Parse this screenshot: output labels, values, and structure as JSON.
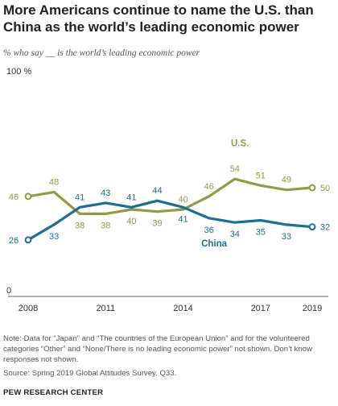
{
  "title": "More Americans continue to name the U.S. than China as the world’s leading economic power",
  "subtitle": "% who say __ is the world’s leading economic power",
  "note": "Note: Data for “Japan” and “The countries of the European Union” and for the volunteered categories “Other” and “None/There is no leading economic power” not shown. Don’t know responses not shown.",
  "source": "Source: Spring 2019 Global Attitudes Survey. Q33.",
  "footer": "PEW RESEARCH CENTER",
  "colors": {
    "us": "#949a44",
    "china": "#1b6e94"
  },
  "chart_data": {
    "type": "line",
    "x": [
      2008,
      2009,
      2010,
      2011,
      2012,
      2013,
      2014,
      2015,
      2016,
      2017,
      2018,
      2019
    ],
    "x_tick_labels": [
      "2008",
      "2011",
      "2014",
      "2017",
      "2019"
    ],
    "x_tick_values": [
      2008,
      2011,
      2014,
      2017,
      2019
    ],
    "ylim": [
      0,
      100
    ],
    "y_tick_labels": [
      "100 %",
      "0"
    ],
    "series": [
      {
        "name": "U.S.",
        "key": "us",
        "values": [
          46,
          48,
          38,
          38,
          40,
          39,
          40,
          46,
          54,
          51,
          49,
          50
        ]
      },
      {
        "name": "China",
        "key": "china",
        "values": [
          26,
          33,
          41,
          43,
          41,
          44,
          41,
          36,
          34,
          35,
          33,
          32
        ]
      }
    ],
    "grid": false,
    "legend": "inline labels"
  }
}
